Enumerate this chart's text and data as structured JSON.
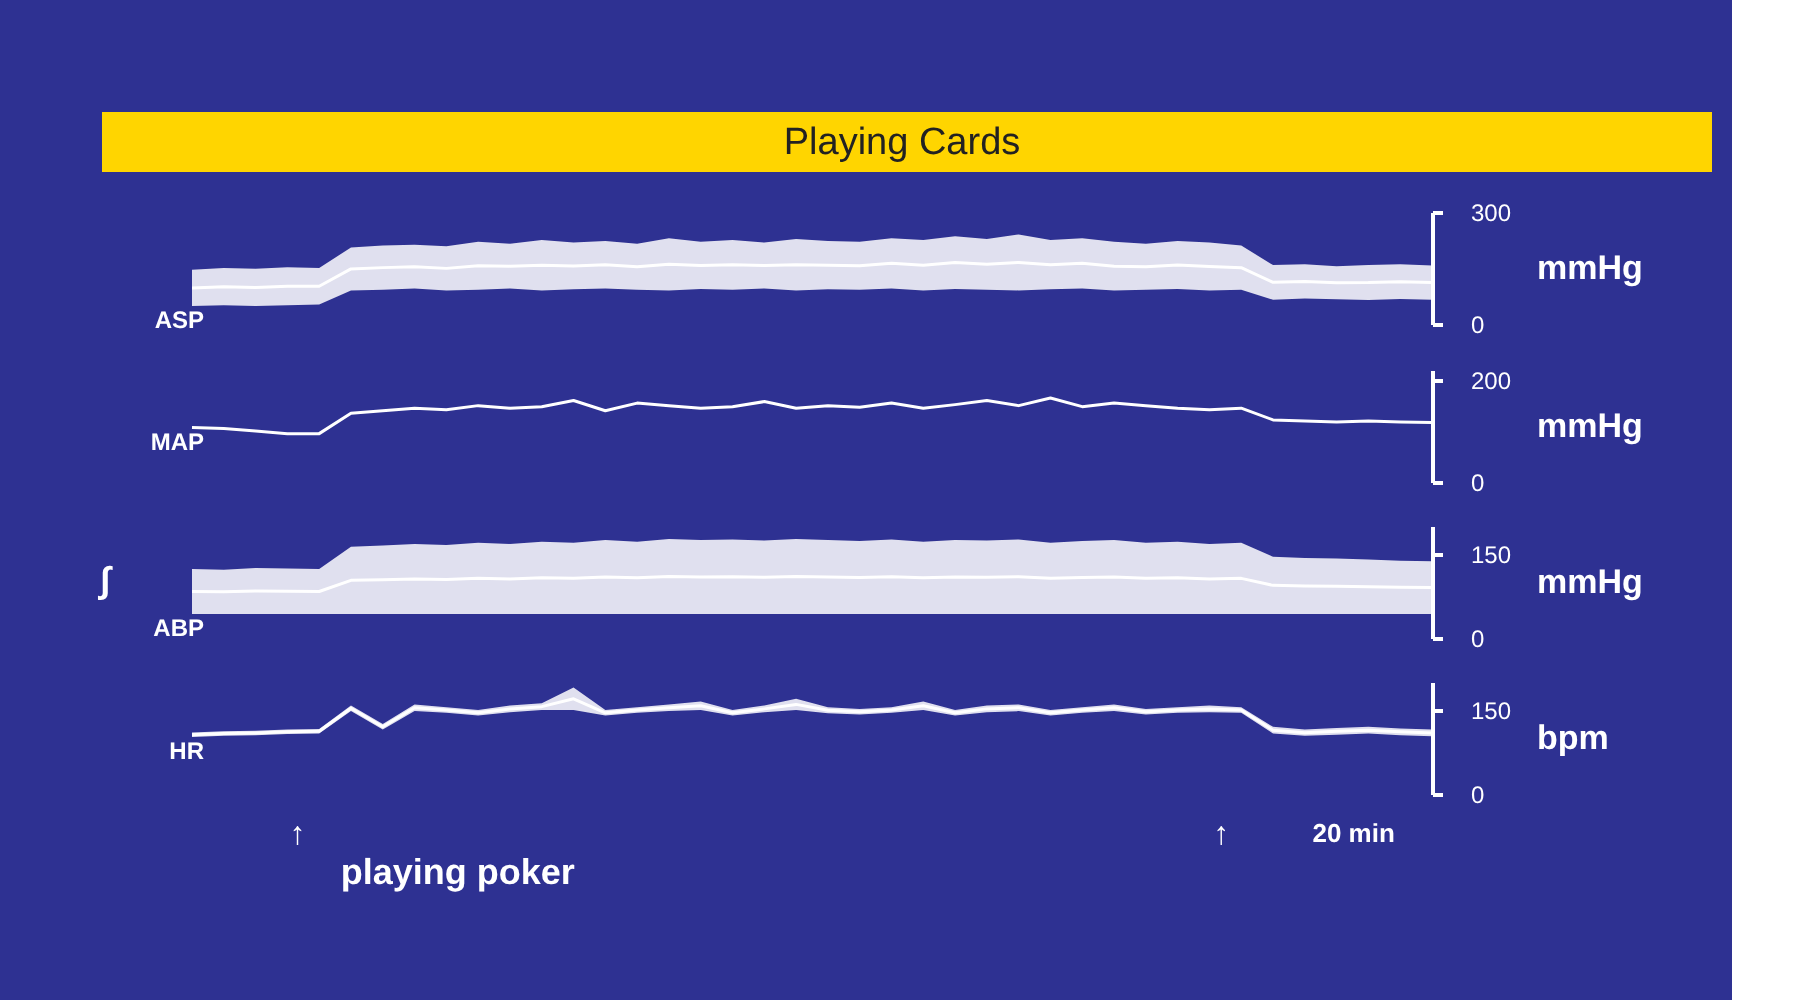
{
  "chart_data": [
    {
      "type": "line",
      "title": "Playing Cards",
      "ylabel": "mmHg",
      "categories": [
        null,
        null,
        null,
        null,
        null,
        null,
        null,
        null,
        null,
        null,
        null,
        null,
        null,
        null,
        null,
        null,
        null,
        null,
        null,
        null,
        null,
        null,
        null,
        null,
        null,
        null,
        null,
        null,
        null,
        null,
        null,
        null,
        null,
        null,
        null,
        null,
        null,
        null,
        null,
        null
      ],
      "ylim": [
        0,
        300
      ],
      "yticks": [
        0,
        300
      ],
      "tick_labels": "y",
      "grid": false,
      "series": [
        {
          "name": "ASP",
          "color": "#ffffff",
          "values": [
            96.5,
            100,
            98,
            101,
            101,
            147.5,
            151,
            153.5,
            149,
            156,
            155,
            157.5,
            155.5,
            158.5,
            153.5,
            160,
            157,
            158.5,
            156.5,
            159,
            157.5,
            156,
            162.5,
            157.5,
            164.5,
            160,
            165,
            159,
            162.5,
            155,
            153.5,
            158,
            154,
            151,
            111.5,
            114,
            110.5,
            111,
            113.5,
            111
          ],
          "upper": [
            145,
            150,
            148,
            152,
            150,
            205,
            210,
            212,
            208,
            220,
            215,
            225,
            218,
            222,
            215,
            230,
            220,
            225,
            218,
            228,
            222,
            220,
            230,
            225,
            235,
            228,
            240,
            225,
            230,
            220,
            215,
            222,
            218,
            210,
            158,
            160,
            155,
            158,
            160,
            157
          ],
          "lower": [
            48,
            50,
            48,
            50,
            52,
            90,
            92,
            95,
            90,
            92,
            95,
            90,
            93,
            95,
            92,
            90,
            94,
            92,
            95,
            90,
            93,
            92,
            95,
            90,
            94,
            92,
            90,
            93,
            95,
            90,
            92,
            94,
            90,
            92,
            65,
            68,
            66,
            64,
            67,
            65
          ]
        }
      ]
    },
    {
      "type": "line",
      "ylabel": "mmHg",
      "categories": [
        null,
        null,
        null,
        null,
        null,
        null,
        null,
        null,
        null,
        null,
        null,
        null,
        null,
        null,
        null,
        null,
        null,
        null,
        null,
        null,
        null,
        null,
        null,
        null,
        null,
        null,
        null,
        null,
        null,
        null,
        null,
        null,
        null,
        null,
        null,
        null,
        null,
        null,
        null,
        null
      ],
      "ylim": [
        0,
        220
      ],
      "yticks": [
        0,
        200
      ],
      "tick_labels": "y",
      "grid": false,
      "series": [
        {
          "name": "MAP",
          "color": "#ffffff",
          "values": [
            107,
            105,
            100,
            95,
            95,
            135,
            140,
            145,
            142,
            150,
            145,
            148,
            160,
            140,
            155,
            150,
            145,
            148,
            158,
            145,
            150,
            147,
            155,
            145,
            152,
            160,
            150,
            165,
            148,
            155,
            150,
            145,
            142,
            145,
            122,
            120,
            118,
            120,
            118,
            117
          ]
        }
      ]
    },
    {
      "type": "line",
      "ylabel": "mmHg",
      "annotations": [
        "∫"
      ],
      "categories": [
        null,
        null,
        null,
        null,
        null,
        null,
        null,
        null,
        null,
        null,
        null,
        null,
        null,
        null,
        null,
        null,
        null,
        null,
        null,
        null,
        null,
        null,
        null,
        null,
        null,
        null,
        null,
        null,
        null,
        null,
        null,
        null,
        null,
        null,
        null,
        null,
        null,
        null,
        null,
        null
      ],
      "ylim": [
        0,
        200
      ],
      "yticks": [
        0,
        150
      ],
      "tick_labels": "y",
      "grid": false,
      "series": [
        {
          "name": "ABP",
          "color": "#ffffff",
          "values": [
            83,
            82.5,
            84,
            83.5,
            83,
            103,
            104,
            105.5,
            104.5,
            106.5,
            105.5,
            107.5,
            106.5,
            109,
            107.5,
            110,
            109,
            109.5,
            108.5,
            110,
            109,
            108,
            109.5,
            107.5,
            109,
            108.5,
            109.5,
            106.5,
            108,
            109,
            106.5,
            107.5,
            105.5,
            106.5,
            94,
            93,
            92.5,
            91.5,
            90.5,
            90
          ],
          "upper": [
            123,
            122,
            125,
            124,
            123,
            163,
            165,
            168,
            166,
            170,
            168,
            172,
            170,
            175,
            172,
            177,
            175,
            176,
            174,
            177,
            175,
            173,
            176,
            172,
            175,
            174,
            176,
            170,
            173,
            175,
            170,
            172,
            168,
            170,
            145,
            143,
            142,
            140,
            138,
            137
          ],
          "lower": [
            43,
            43,
            43,
            43,
            43,
            43,
            43,
            43,
            43,
            43,
            43,
            43,
            43,
            43,
            43,
            43,
            43,
            43,
            43,
            43,
            43,
            43,
            43,
            43,
            43,
            43,
            43,
            43,
            43,
            43,
            43,
            43,
            43,
            43,
            43,
            43,
            43,
            43,
            43,
            43
          ]
        }
      ]
    },
    {
      "type": "line",
      "ylabel": "bpm",
      "annotations": [
        "↑",
        "playing poker",
        "↑",
        "20 min"
      ],
      "categories": [
        null,
        null,
        null,
        null,
        null,
        null,
        null,
        null,
        null,
        null,
        null,
        null,
        null,
        null,
        null,
        null,
        null,
        null,
        null,
        null,
        null,
        null,
        null,
        null,
        null,
        null,
        null,
        null,
        null,
        null,
        null,
        null,
        null,
        null,
        null,
        null,
        null,
        null,
        null,
        null
      ],
      "ylim": [
        0,
        200
      ],
      "yticks": [
        0,
        150
      ],
      "tick_labels": "y",
      "grid": false,
      "series": [
        {
          "name": "HR",
          "color": "#ffffff",
          "values": [
            106,
            108,
            109,
            111,
            112,
            153,
            120,
            154,
            150,
            145,
            152,
            156,
            170,
            145,
            150,
            154,
            157.5,
            145,
            152,
            160,
            149.5,
            147,
            150,
            157.5,
            145,
            152,
            154,
            145,
            150,
            154,
            147,
            150,
            152,
            150,
            114,
            109.5,
            112,
            114,
            111,
            109
          ],
          "upper": [
            110,
            112,
            113,
            115,
            116,
            158,
            125,
            160,
            155,
            150,
            158,
            162,
            190,
            150,
            155,
            160,
            165,
            150,
            158,
            170,
            155,
            152,
            155,
            165,
            150,
            158,
            160,
            150,
            155,
            160,
            152,
            155,
            158,
            155,
            120,
            115,
            118,
            120,
            117,
            115
          ],
          "lower": [
            102,
            104,
            105,
            107,
            108,
            148,
            115,
            148,
            145,
            140,
            146,
            150,
            150,
            140,
            145,
            148,
            150,
            140,
            146,
            150,
            144,
            142,
            145,
            150,
            140,
            146,
            148,
            140,
            145,
            148,
            142,
            145,
            146,
            145,
            108,
            104,
            106,
            108,
            105,
            103
          ]
        }
      ]
    }
  ]
}
